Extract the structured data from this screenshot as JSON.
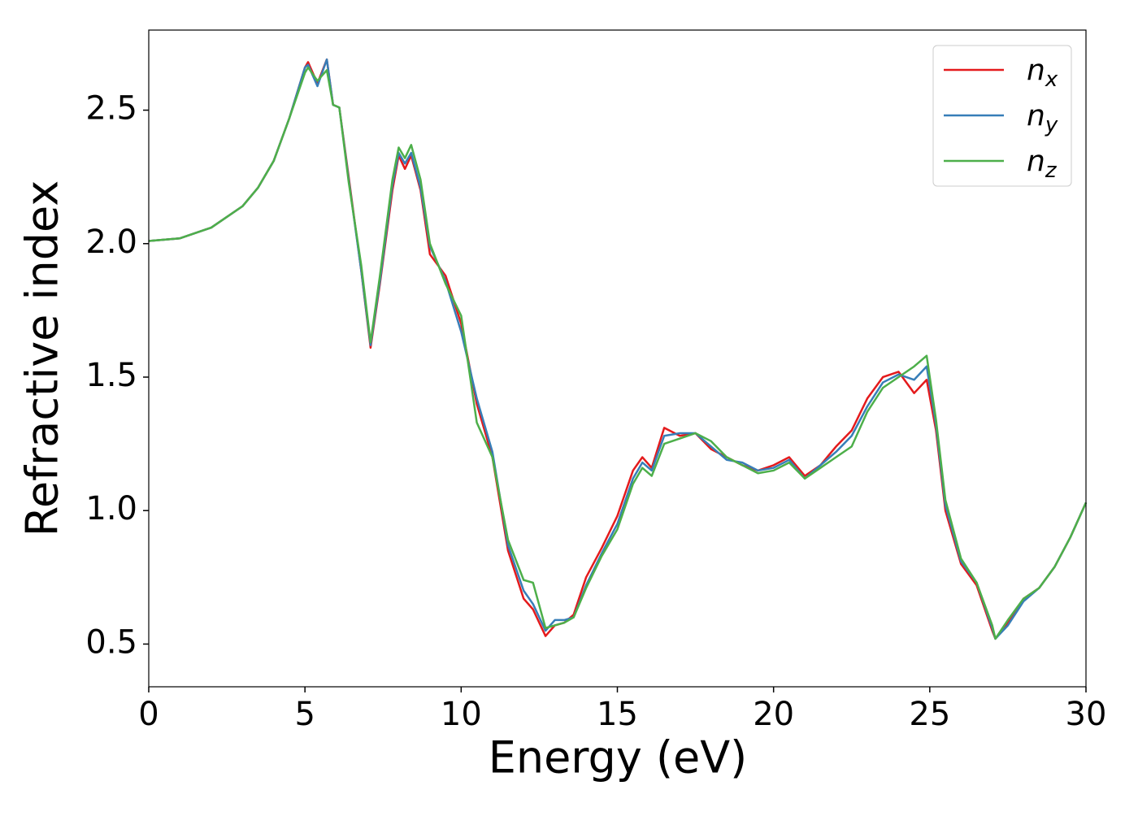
{
  "chart_data": {
    "type": "line",
    "xlabel": "Energy (eV)",
    "ylabel": "Refractive index",
    "x": [
      0,
      1,
      2,
      3,
      3.5,
      4,
      4.5,
      5,
      5.1,
      5.4,
      5.7,
      5.9,
      6.1,
      6.4,
      6.8,
      7.1,
      7.4,
      7.8,
      8.0,
      8.2,
      8.4,
      8.7,
      9.0,
      9.5,
      10,
      10.5,
      11,
      11.5,
      12,
      12.3,
      12.7,
      13,
      13.3,
      13.6,
      14,
      14.5,
      15,
      15.5,
      15.8,
      16.1,
      16.5,
      17,
      17.5,
      18,
      18.5,
      19,
      19.5,
      20,
      20.5,
      21,
      21.5,
      22,
      22.5,
      23,
      23.5,
      24,
      24.5,
      24.9,
      25.2,
      25.5,
      26,
      26.5,
      27,
      27.1,
      27.5,
      28,
      28.5,
      29,
      29.5,
      30
    ],
    "series": [
      {
        "name": "n_x",
        "color": "#e41a1c",
        "values": [
          2.01,
          2.02,
          2.06,
          2.14,
          2.21,
          2.31,
          2.47,
          2.66,
          2.68,
          2.6,
          2.69,
          2.52,
          2.51,
          2.25,
          1.9,
          1.61,
          1.85,
          2.2,
          2.33,
          2.28,
          2.33,
          2.2,
          1.96,
          1.88,
          1.7,
          1.4,
          1.2,
          0.85,
          0.67,
          0.63,
          0.53,
          0.57,
          0.58,
          0.61,
          0.75,
          0.86,
          0.98,
          1.15,
          1.2,
          1.16,
          1.31,
          1.28,
          1.29,
          1.23,
          1.2,
          1.17,
          1.15,
          1.17,
          1.2,
          1.13,
          1.17,
          1.24,
          1.3,
          1.42,
          1.5,
          1.52,
          1.44,
          1.49,
          1.3,
          1.0,
          0.8,
          0.72,
          0.55,
          0.52,
          0.58,
          0.67,
          0.71,
          0.79,
          0.9,
          1.03
        ]
      },
      {
        "name": "n_y",
        "color": "#377eb8",
        "values": [
          2.01,
          2.02,
          2.06,
          2.14,
          2.21,
          2.31,
          2.47,
          2.66,
          2.67,
          2.59,
          2.69,
          2.52,
          2.51,
          2.24,
          1.9,
          1.62,
          1.86,
          2.22,
          2.34,
          2.3,
          2.34,
          2.21,
          1.99,
          1.86,
          1.67,
          1.42,
          1.22,
          0.87,
          0.7,
          0.65,
          0.55,
          0.59,
          0.59,
          0.6,
          0.72,
          0.84,
          0.95,
          1.12,
          1.18,
          1.15,
          1.28,
          1.29,
          1.29,
          1.24,
          1.19,
          1.18,
          1.15,
          1.16,
          1.19,
          1.12,
          1.17,
          1.22,
          1.28,
          1.39,
          1.48,
          1.51,
          1.49,
          1.54,
          1.32,
          1.02,
          0.81,
          0.73,
          0.56,
          0.52,
          0.57,
          0.66,
          0.71,
          0.79,
          0.9,
          1.03
        ]
      },
      {
        "name": "n_z",
        "color": "#4daf4a",
        "values": [
          2.01,
          2.02,
          2.06,
          2.14,
          2.21,
          2.31,
          2.47,
          2.64,
          2.66,
          2.61,
          2.65,
          2.52,
          2.51,
          2.23,
          1.92,
          1.63,
          1.88,
          2.24,
          2.36,
          2.32,
          2.37,
          2.24,
          2.0,
          1.85,
          1.73,
          1.33,
          1.2,
          0.89,
          0.74,
          0.73,
          0.56,
          0.57,
          0.58,
          0.6,
          0.71,
          0.83,
          0.93,
          1.1,
          1.16,
          1.13,
          1.25,
          1.27,
          1.29,
          1.26,
          1.2,
          1.17,
          1.14,
          1.15,
          1.18,
          1.12,
          1.16,
          1.2,
          1.24,
          1.37,
          1.46,
          1.5,
          1.54,
          1.58,
          1.34,
          1.04,
          0.82,
          0.73,
          0.57,
          0.52,
          0.59,
          0.67,
          0.71,
          0.79,
          0.9,
          1.03
        ]
      }
    ],
    "xlim": [
      0,
      30
    ],
    "xticks": [
      0,
      5,
      10,
      15,
      20,
      25,
      30
    ],
    "ylim": [
      0.34,
      2.8
    ],
    "yticks": [
      0.5,
      {
        "value": 1.0,
        "label": "1.0"
      },
      1.5,
      {
        "value": 2.0,
        "label": "2.0"
      },
      2.5
    ],
    "legend": "upper right"
  }
}
